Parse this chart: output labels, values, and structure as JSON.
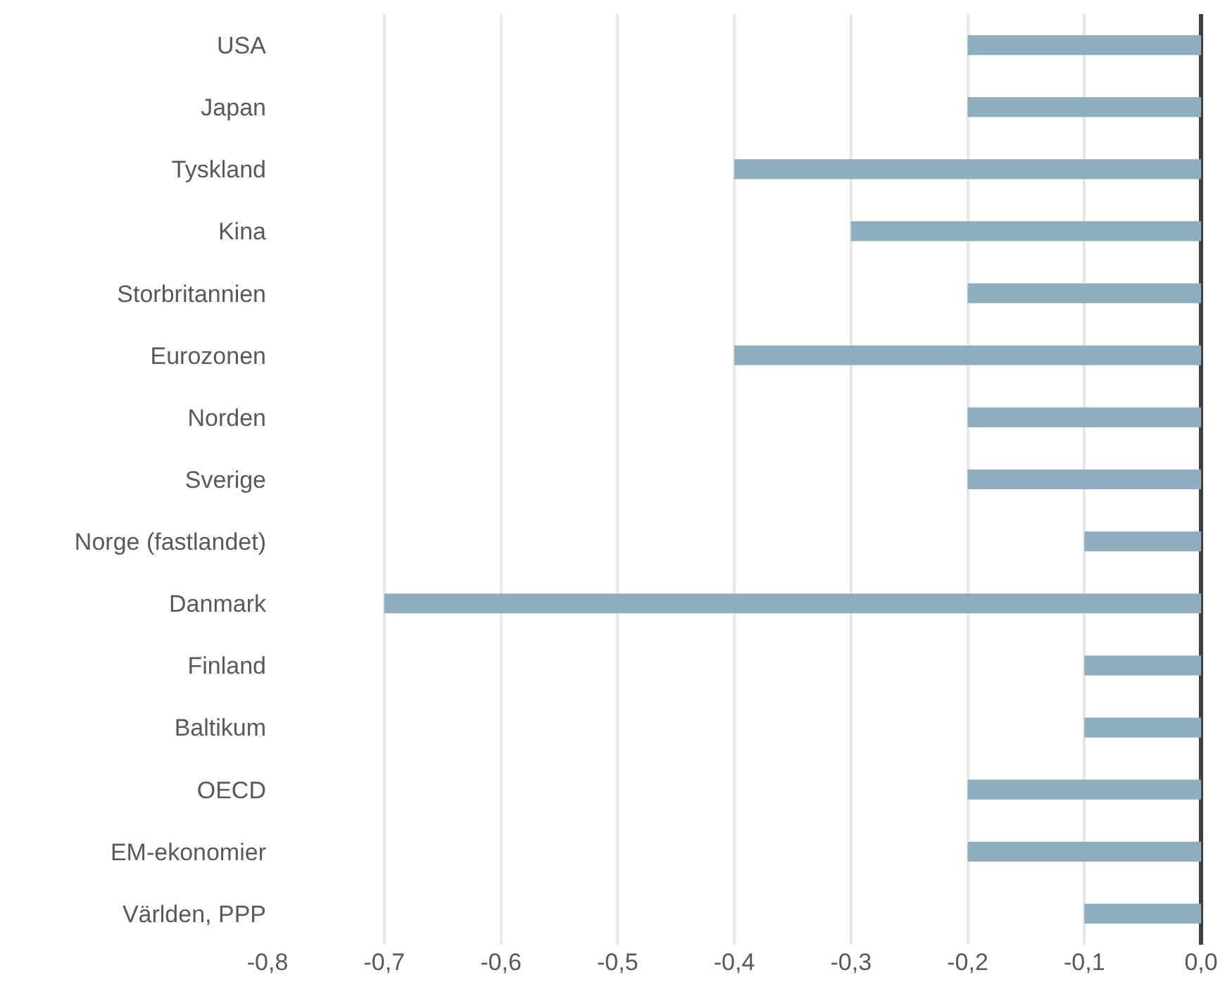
{
  "chart_data": {
    "type": "bar",
    "orientation": "horizontal",
    "categories": [
      "USA",
      "Japan",
      "Tyskland",
      "Kina",
      "Storbritannien",
      "Eurozonen",
      "Norden",
      "Sverige",
      "Norge (fastlandet)",
      "Danmark",
      "Finland",
      "Baltikum",
      "OECD",
      "EM-ekonomier",
      "Världen, PPP"
    ],
    "values": [
      -0.2,
      -0.2,
      -0.4,
      -0.3,
      -0.2,
      -0.4,
      -0.2,
      -0.2,
      -0.1,
      -0.7,
      -0.1,
      -0.1,
      -0.2,
      -0.2,
      -0.1
    ],
    "color": "#8eadbf",
    "xlim": [
      -0.8,
      0
    ],
    "xticks": [
      {
        "value": -0.8,
        "label": "-0,8"
      },
      {
        "value": -0.7,
        "label": "-0,7"
      },
      {
        "value": -0.6,
        "label": "-0,6"
      },
      {
        "value": -0.5,
        "label": "-0,5"
      },
      {
        "value": -0.4,
        "label": "-0,4"
      },
      {
        "value": -0.3,
        "label": "-0,3"
      },
      {
        "value": -0.2,
        "label": "-0,2"
      },
      {
        "value": -0.1,
        "label": "-0,1"
      },
      {
        "value": 0,
        "label": "0,0"
      }
    ],
    "grid": "x"
  }
}
